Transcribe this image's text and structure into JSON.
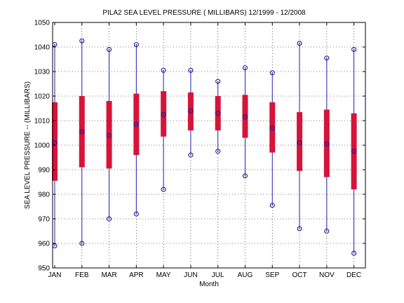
{
  "chart_data": {
    "type": "box",
    "title": "PILA2  SEA LEVEL PRESSURE ( MILLIBARS) 12/1999 - 12/2008",
    "xlabel": "Month",
    "ylabel": "SEA LEVEL PRESSURE -- (MILLIBARS)",
    "ylim": [
      950,
      1050
    ],
    "yticks": [
      950,
      960,
      970,
      980,
      990,
      1000,
      1010,
      1020,
      1030,
      1040,
      1050
    ],
    "grid": true,
    "categories": [
      "JAN",
      "FEB",
      "MAR",
      "APR",
      "MAY",
      "JUN",
      "JUL",
      "AUG",
      "SEP",
      "OCT",
      "NOV",
      "DEC"
    ],
    "series": [
      {
        "min": 959,
        "q1": 985.5,
        "median": 1001,
        "q3": 1017.5,
        "max": 1041
      },
      {
        "min": 960,
        "q1": 991,
        "median": 1005.5,
        "q3": 1020,
        "max": 1042.5
      },
      {
        "min": 970,
        "q1": 990.5,
        "median": 1004,
        "q3": 1018,
        "max": 1039
      },
      {
        "min": 972,
        "q1": 996,
        "median": 1008.5,
        "q3": 1021,
        "max": 1041
      },
      {
        "min": 982,
        "q1": 1003.5,
        "median": 1012.5,
        "q3": 1022,
        "max": 1030.5
      },
      {
        "min": 996,
        "q1": 1006,
        "median": 1014,
        "q3": 1021.5,
        "max": 1030.5
      },
      {
        "min": 997.5,
        "q1": 1006,
        "median": 1013,
        "q3": 1020,
        "max": 1026
      },
      {
        "min": 987.5,
        "q1": 1003,
        "median": 1011.5,
        "q3": 1020.5,
        "max": 1031.5
      },
      {
        "min": 975.5,
        "q1": 997,
        "median": 1007,
        "q3": 1017.5,
        "max": 1029.5
      },
      {
        "min": 966,
        "q1": 989.5,
        "median": 1001,
        "q3": 1013.5,
        "max": 1041.5
      },
      {
        "min": 965,
        "q1": 987,
        "median": 1000.5,
        "q3": 1014.5,
        "max": 1035.5
      },
      {
        "min": 956,
        "q1": 982,
        "median": 997.5,
        "q3": 1013,
        "max": 1039
      }
    ],
    "colors": {
      "whisker": "#1f1fb4",
      "box": "#d6143a",
      "marker": "#1a1a8c"
    }
  }
}
